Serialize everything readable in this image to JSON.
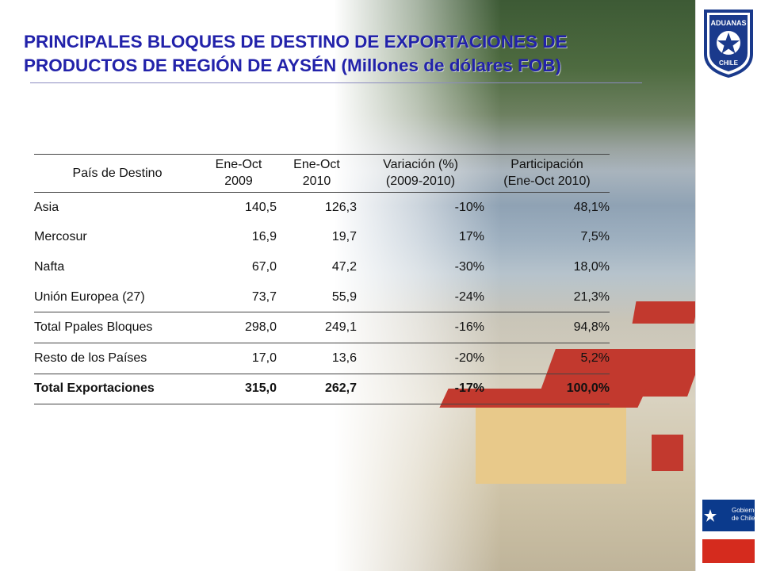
{
  "slide": {
    "title_line1": "PRINCIPALES BLOQUES DE DESTINO DE EXPORTACIONES DE",
    "title_line2": "PRODUCTOS DE REGIÓN DE AYSÉN (Millones de dólares FOB)"
  },
  "logos": {
    "aduanas_top": "ADUANAS",
    "aduanas_bottom": "CHILE",
    "gobierno_line1": "Gobierno",
    "gobierno_line2": "de Chile"
  },
  "table": {
    "headers": {
      "pais": "País de Destino",
      "y2009_l1": "Ene-Oct",
      "y2009_l2": "2009",
      "y2010_l1": "Ene-Oct",
      "y2010_l2": "2010",
      "var_l1": "Variación (%)",
      "var_l2": "(2009-2010)",
      "part_l1": "Participación",
      "part_l2": "(Ene-Oct 2010)"
    },
    "rows": [
      {
        "pais": "Asia",
        "v2009": "140,5",
        "v2010": "126,3",
        "var": "-10%",
        "part": "48,1%"
      },
      {
        "pais": "Mercosur",
        "v2009": "16,9",
        "v2010": "19,7",
        "var": "17%",
        "part": "7,5%"
      },
      {
        "pais": "Nafta",
        "v2009": "67,0",
        "v2010": "47,2",
        "var": "-30%",
        "part": "18,0%"
      },
      {
        "pais": "Unión Europea (27)",
        "v2009": "73,7",
        "v2010": "55,9",
        "var": "-24%",
        "part": "21,3%"
      },
      {
        "pais": "Total Ppales Bloques",
        "v2009": "298,0",
        "v2010": "249,1",
        "var": "-16%",
        "part": "94,8%"
      },
      {
        "pais": "Resto de los Países",
        "v2009": "17,0",
        "v2010": "13,6",
        "var": "-20%",
        "part": "5,2%"
      },
      {
        "pais": "Total Exportaciones",
        "v2009": "315,0",
        "v2010": "262,7",
        "var": "-17%",
        "part": "100,0%"
      }
    ]
  },
  "colors": {
    "title": "#2222aa",
    "aduanas_blue": "#1a3a8c",
    "gob_blue": "#0b3a8c",
    "gob_red": "#d52b1e"
  }
}
